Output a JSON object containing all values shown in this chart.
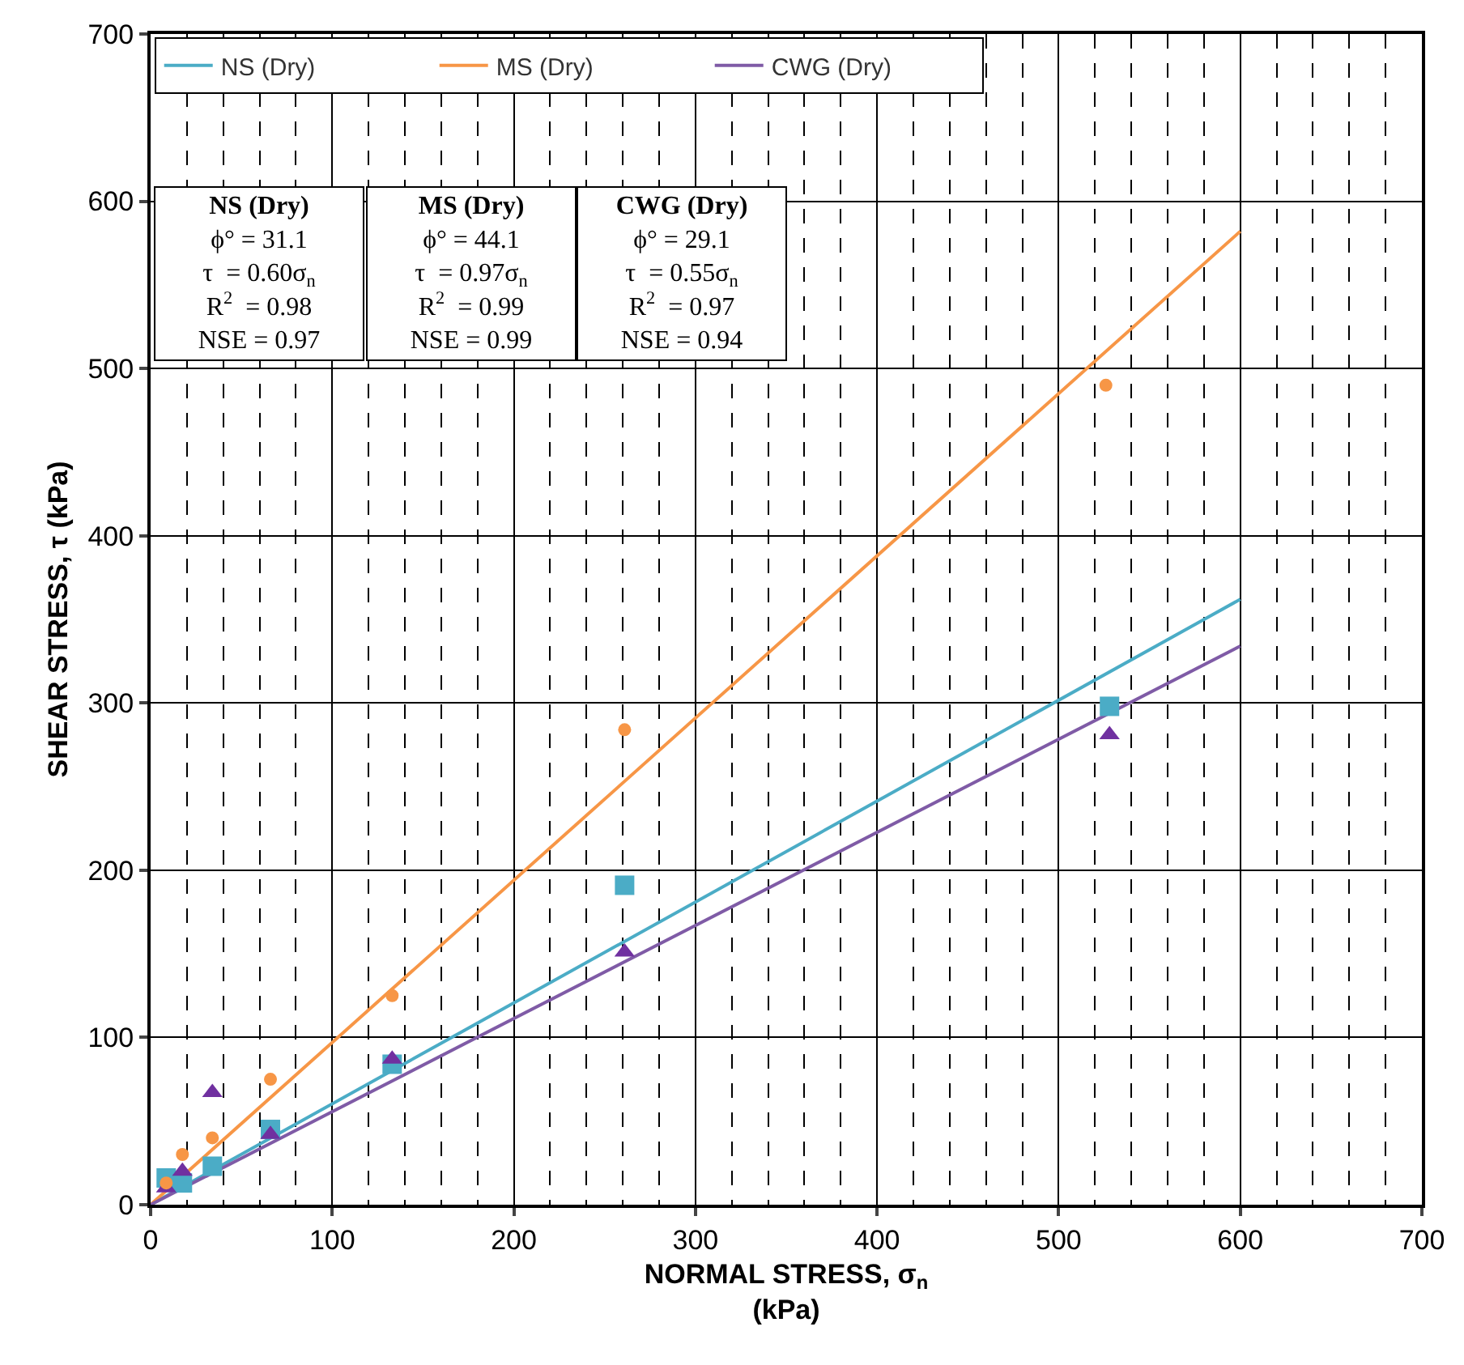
{
  "chart_data": {
    "type": "scatter",
    "xlabel": "NORMAL STRESS, σ$_{n}$\n(kPa)",
    "ylabel": "SHEAR STRESS, τ (kPa)",
    "xlim": [
      0,
      700
    ],
    "ylim": [
      0,
      700
    ],
    "xticks": [
      0,
      100,
      200,
      300,
      400,
      500,
      600,
      700
    ],
    "yticks": [
      0,
      100,
      200,
      300,
      400,
      500,
      600,
      700
    ],
    "grid": true,
    "legend": "top left",
    "series": [
      {
        "name": "NS (Dry)",
        "type": "line",
        "color": "#4bacc6",
        "x": [
          0,
          600
        ],
        "values": [
          0,
          362
        ],
        "marker": "none"
      },
      {
        "name": "MS (Dry)",
        "type": "line",
        "color": "#f79646",
        "x": [
          0,
          600
        ],
        "values": [
          0,
          582
        ],
        "marker": "none"
      },
      {
        "name": "CWG (Dry)",
        "type": "line",
        "color": "#7f5ba6",
        "x": [
          0,
          600
        ],
        "values": [
          0,
          334
        ],
        "marker": "none"
      },
      {
        "color": "#4bacc6",
        "marker": "square",
        "x": [
          8.6,
          17.5,
          34,
          66,
          133,
          261,
          528
        ],
        "values": [
          16,
          13,
          23,
          45,
          84,
          191,
          298
        ]
      },
      {
        "color": "#7030a0",
        "marker": "triangle",
        "x": [
          8.6,
          17.5,
          34,
          66,
          133,
          261,
          528
        ],
        "values": [
          10,
          20,
          67,
          42,
          87,
          151,
          281
        ]
      },
      {
        "color": "#f79646",
        "marker": "circle",
        "x": [
          8.6,
          17.5,
          34,
          66,
          133,
          261,
          526
        ],
        "values": [
          13,
          30,
          40,
          75,
          125,
          284,
          490
        ]
      }
    ],
    "annotations": [
      "NS (Dry)\nϕ° = 31.1\nτ  = 0.60σ$_{n}$\nR$^{2}$  = 0.98\nNSE = 0.97",
      "MS (Dry)\nϕ° = 44.1\nτ  = 0.97σ$_{n}$\nR$^{2}$  = 0.99\nNSE = 0.99",
      "CWG (Dry)\nϕ° = 29.1\nτ  = 0.55σ$_{n}$\nR$^{2}$  = 0.97\nNSE = 0.94"
    ]
  }
}
